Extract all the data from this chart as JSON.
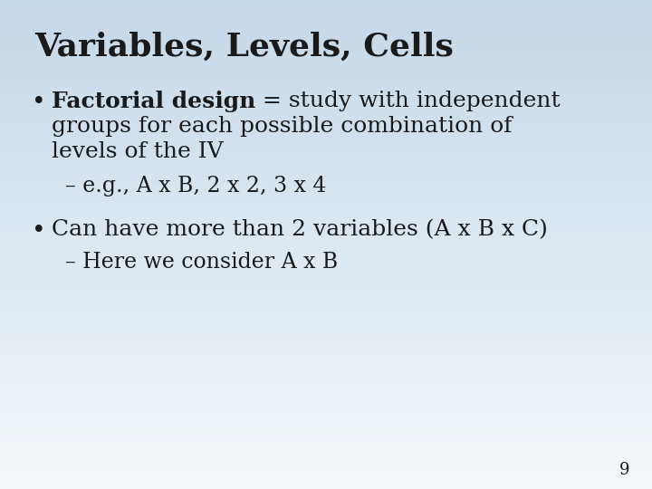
{
  "title": "Variables, Levels, Cells",
  "bullet1_bold": "Factorial design",
  "bullet1_normal": " = study with independent",
  "bullet1_line2": "groups for each possible combination of",
  "bullet1_line3": "levels of the IV",
  "sub1": "– e.g., A x B, 2 x 2, 3 x 4",
  "bullet2": "Can have more than 2 variables (A x B x C)",
  "sub2": "– Here we consider A x B",
  "page_number": "9",
  "bg_top_right": "#c8dce8",
  "bg_bottom_left": "#f0f4f6",
  "text_color": "#1a1a1a",
  "title_fontsize": 26,
  "body_fontsize": 18,
  "sub_fontsize": 17
}
